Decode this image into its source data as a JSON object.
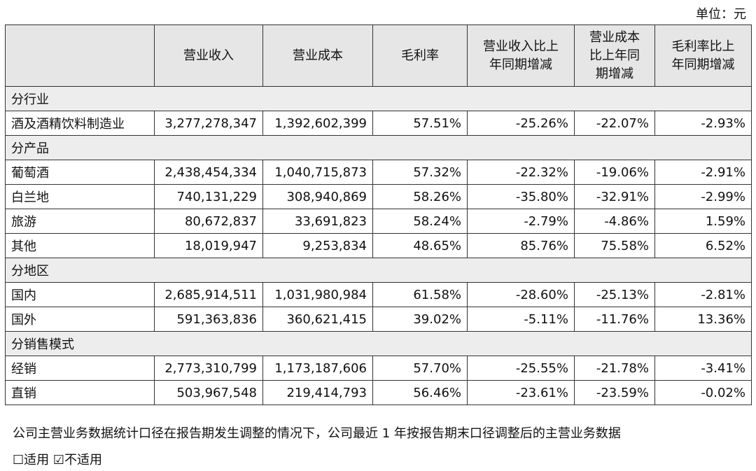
{
  "unit": "单位：元",
  "table": {
    "header": [
      "",
      "营业收入",
      "营业成本",
      "毛利率",
      "营业收入比上\n年同期增减",
      "营业成本\n比上年同\n期增减",
      "毛利率比上\n年同期增减"
    ],
    "sections": [
      {
        "label": "分行业",
        "rows": [
          [
            "酒及酒精饮料制造业",
            "3,277,278,347",
            "1,392,602,399",
            "57.51%",
            "-25.26%",
            "-22.07%",
            "-2.93%"
          ]
        ]
      },
      {
        "label": "分产品",
        "rows": [
          [
            "葡萄酒",
            "2,438,454,334",
            "1,040,715,873",
            "57.32%",
            "-22.32%",
            "-19.06%",
            "-2.91%"
          ],
          [
            "白兰地",
            "740,131,229",
            "308,940,869",
            "58.26%",
            "-35.80%",
            "-32.91%",
            "-2.99%"
          ],
          [
            "旅游",
            "80,672,837",
            "33,691,823",
            "58.24%",
            "-2.79%",
            "-4.86%",
            "1.59%"
          ],
          [
            "其他",
            "18,019,947",
            "9,253,834",
            "48.65%",
            "85.76%",
            "75.58%",
            "6.52%"
          ]
        ]
      },
      {
        "label": "分地区",
        "rows": [
          [
            "国内",
            "2,685,914,511",
            "1,031,980,984",
            "61.58%",
            "-28.60%",
            "-25.13%",
            "-2.81%"
          ],
          [
            "国外",
            "591,363,836",
            "360,621,415",
            "39.02%",
            "-5.11%",
            "-11.76%",
            "13.36%"
          ]
        ]
      },
      {
        "label": "分销售模式",
        "rows": [
          [
            "经销",
            "2,773,310,799",
            "1,173,187,606",
            "57.70%",
            "-25.55%",
            "-21.78%",
            "-3.41%"
          ],
          [
            "直销",
            "503,967,548",
            "219,414,793",
            "56.46%",
            "-23.61%",
            "-23.59%",
            "-0.02%"
          ]
        ]
      }
    ]
  },
  "note": "公司主营业务数据统计口径在报告期发生调整的情况下，公司最近 1 年按报告期末口径调整后的主营业务数据",
  "options": [
    "☐适用",
    "☑不适用"
  ]
}
